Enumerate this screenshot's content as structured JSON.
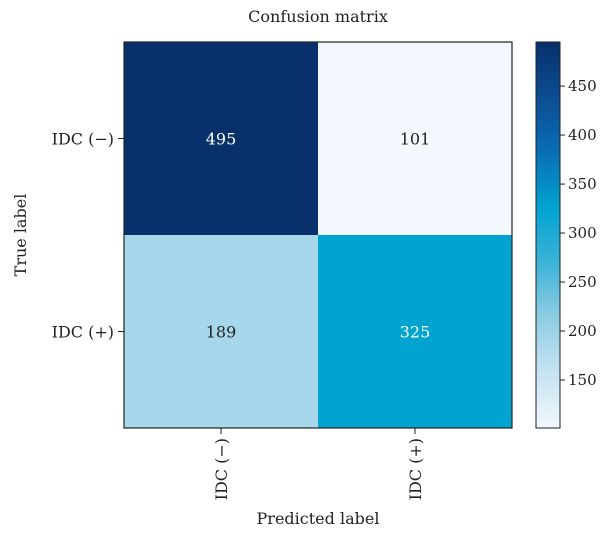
{
  "chart_data": {
    "type": "heatmap",
    "title": "Confusion matrix",
    "xlabel": "Predicted label",
    "ylabel": "True label",
    "x_categories": [
      "IDC (−)",
      "IDC (+)"
    ],
    "y_categories": [
      "IDC (−)",
      "IDC (+)"
    ],
    "values": [
      [
        495,
        101
      ],
      [
        189,
        325
      ]
    ],
    "colorbar": {
      "range": [
        101,
        495
      ],
      "ticks": [
        150,
        200,
        250,
        300,
        350,
        400,
        450
      ]
    },
    "colormap": [
      "#f2f8fd",
      "#c6e3f1",
      "#8fcde4",
      "#3cb3d8",
      "#00a3d1",
      "#0a6eb4",
      "#0b4d92",
      "#08306b"
    ],
    "grid": false
  }
}
